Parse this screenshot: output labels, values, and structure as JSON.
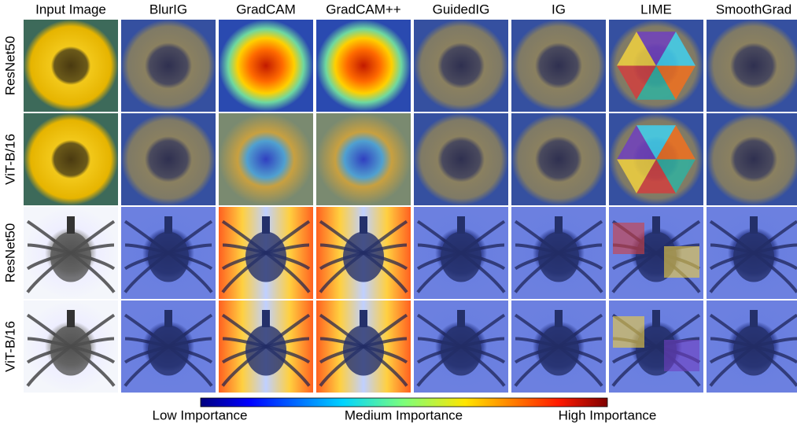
{
  "columns": [
    "Input Image",
    "BlurIG",
    "GradCAM",
    "GradCAM++",
    "GuidedIG",
    "IG",
    "LIME",
    "SmoothGrad"
  ],
  "rows": [
    "ResNet50",
    "ViT-B/16",
    "ResNet50",
    "ViT-B/16"
  ],
  "colorbar": {
    "low": "Low Importance",
    "medium": "Medium Importance",
    "high": "High Importance"
  }
}
